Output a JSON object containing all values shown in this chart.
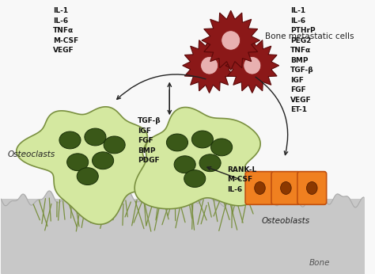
{
  "bg_color": "#f8f8f8",
  "bone_color": "#d0d0d0",
  "left_labels": [
    "IL-1",
    "IL-6",
    "TNFα",
    "M-CSF",
    "VEGF"
  ],
  "right_labels": [
    "IL-1",
    "IL-6",
    "PTHrP",
    "PEG2",
    "TNFα",
    "BMP",
    "TGF-β",
    "IGF",
    "FGF",
    "VEGF",
    "ET-1"
  ],
  "center_labels": [
    "TGF-β",
    "IGF",
    "FGF",
    "BMP",
    "PDGF"
  ],
  "bottom_center_labels": [
    "RANK-L",
    "M-CSF",
    "IL-6"
  ],
  "osteoclast_label": "Osteoclasts",
  "osteoblast_label": "Osteoblasts",
  "bone_label": "Bone",
  "bmc_label": "Bone metastatic cells",
  "osteoclast_body_color": "#d4e8a0",
  "osteoclast_edge_color": "#7a9040",
  "osteoclast_nucleus_color": "#3a5818",
  "osteoblast_color": "#f08020",
  "osteoblast_edge_color": "#c05010",
  "osteoblast_nucleus_color": "#8b3800",
  "bmc_color": "#8b1818",
  "bmc_edge_color": "#5a0808",
  "bmc_light_color": "#e8b0b0",
  "arrow_color": "#222222",
  "font_size": 6.5,
  "font_weight": "bold"
}
